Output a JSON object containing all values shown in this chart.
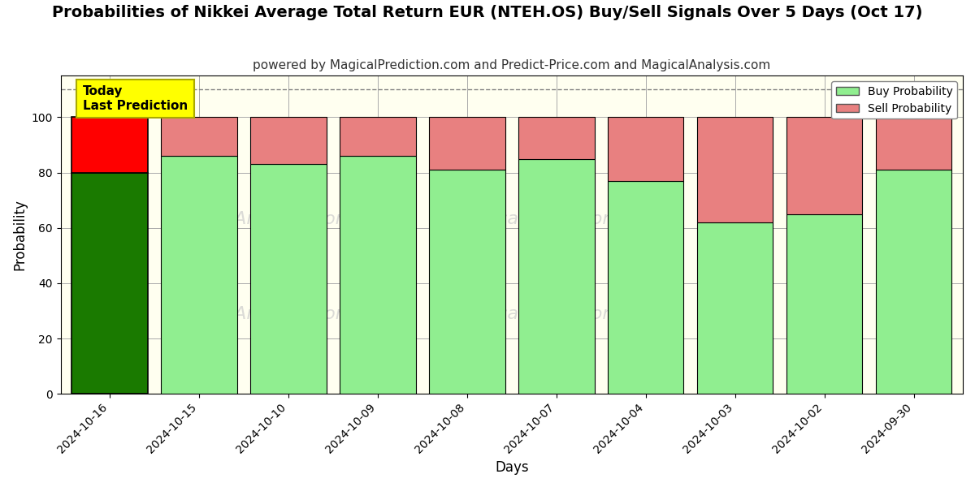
{
  "title": "Probabilities of Nikkei Average Total Return EUR (NTEH.OS) Buy/Sell Signals Over 5 Days (Oct 17)",
  "subtitle": "powered by MagicalPrediction.com and Predict-Price.com and MagicalAnalysis.com",
  "xlabel": "Days",
  "ylabel": "Probability",
  "categories": [
    "2024-10-16",
    "2024-10-15",
    "2024-10-10",
    "2024-10-09",
    "2024-10-08",
    "2024-10-07",
    "2024-10-04",
    "2024-10-03",
    "2024-10-02",
    "2024-09-30"
  ],
  "buy_values": [
    80,
    86,
    83,
    86,
    81,
    85,
    77,
    62,
    65,
    81
  ],
  "sell_values": [
    20,
    14,
    17,
    14,
    19,
    15,
    23,
    38,
    35,
    19
  ],
  "today_buy_color": "#1a7a00",
  "today_sell_color": "#ff0000",
  "buy_color": "#90ee90",
  "sell_color": "#e88080",
  "today_bar_edgecolor": "#000000",
  "bar_edgecolor": "#000000",
  "annotation_text": "Today\nLast Prediction",
  "annotation_bg": "#ffff00",
  "annotation_fontsize": 11,
  "title_fontsize": 14,
  "subtitle_fontsize": 11,
  "legend_buy": "Buy Probability",
  "legend_sell": "Sell Probability",
  "ylim": [
    0,
    115
  ],
  "yticks": [
    0,
    20,
    40,
    60,
    80,
    100
  ],
  "dashed_line_y": 110,
  "bg_color": "#ffffff",
  "plot_bg_color": "#fffff0",
  "grid_color": "#aaaaaa",
  "watermark_color": "#cccccc",
  "bar_width": 0.85
}
